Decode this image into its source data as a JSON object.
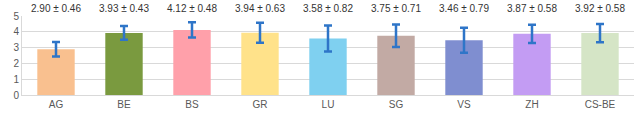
{
  "chart_data": {
    "type": "bar",
    "categories": [
      "AG",
      "BE",
      "BS",
      "GR",
      "LU",
      "SG",
      "VS",
      "ZH",
      "CS-BE"
    ],
    "values": [
      2.9,
      3.93,
      4.12,
      3.94,
      3.58,
      3.75,
      3.46,
      3.87,
      3.92
    ],
    "errors": [
      0.46,
      0.43,
      0.48,
      0.63,
      0.82,
      0.71,
      0.79,
      0.58,
      0.58
    ],
    "value_labels": [
      "2.90 ± 0.46",
      "3.93 ± 0.43",
      "4.12 ± 0.48",
      "3.94 ± 0.63",
      "3.58 ± 0.82",
      "3.75 ± 0.71",
      "3.46 ± 0.79",
      "3.87 ± 0.58",
      "3.92 ± 0.58"
    ],
    "colors": [
      "#f9c08f",
      "#7a9a3f",
      "#ffa0aa",
      "#ffe28a",
      "#7fd0f0",
      "#c2aaa4",
      "#7f8ed0",
      "#c39cf3",
      "#d5e5c6"
    ],
    "ylim": [
      0,
      5
    ],
    "yticks": [
      0,
      1,
      2,
      3,
      4,
      5
    ],
    "grid": true,
    "data_labels": true
  }
}
